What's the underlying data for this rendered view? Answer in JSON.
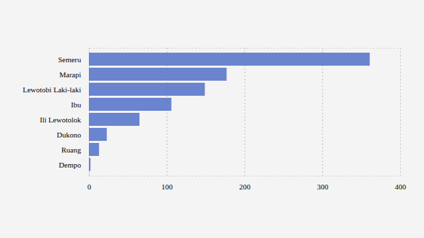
{
  "chart_data": {
    "type": "bar",
    "orientation": "horizontal",
    "categories": [
      "Semeru",
      "Marapi",
      "Lewotobi Laki-laki",
      "Ibu",
      "Ili Lewotolok",
      "Dukono",
      "Ruang",
      "Dempo"
    ],
    "values": [
      361,
      177,
      149,
      106,
      65,
      23,
      13,
      2
    ],
    "color": "#5b78cc",
    "xlim": [
      0,
      400
    ],
    "xticks": [
      0,
      100,
      200,
      300,
      400
    ],
    "grid": true
  }
}
